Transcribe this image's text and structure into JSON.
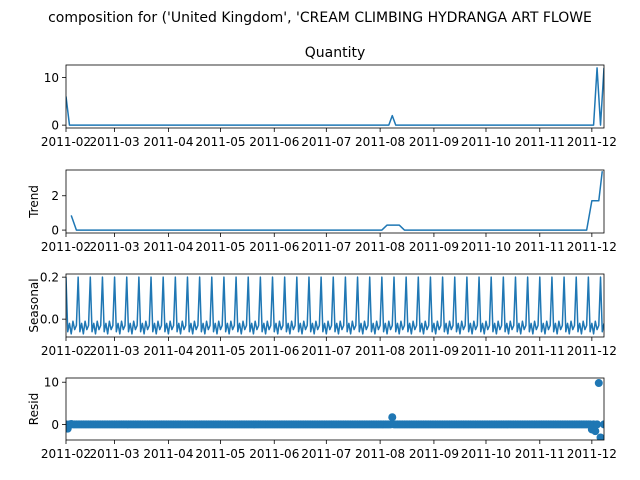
{
  "figure": {
    "suptitle": "composition for ('United Kingdom', 'CREAM CLIMBING HYDRANGA ART FLOWE"
  },
  "chart_data": [
    {
      "type": "line",
      "panel": "observed",
      "title": "Quantity",
      "ylabel": "",
      "color": "#1f77b4",
      "x_ticks": [
        "2011-02",
        "2011-03",
        "2011-04",
        "2011-05",
        "2011-06",
        "2011-07",
        "2011-08",
        "2011-09",
        "2011-10",
        "2011-11",
        "2011-12"
      ],
      "y_ticks": [
        0,
        10
      ],
      "ylim": [
        -0.6,
        12.6
      ],
      "series": [
        {
          "points": [
            [
              "2011-02-01",
              6
            ],
            [
              "2011-02-03",
              0
            ],
            [
              "2011-08-06",
              0
            ],
            [
              "2011-08-08",
              2
            ],
            [
              "2011-08-10",
              0
            ],
            [
              "2011-12-02",
              0
            ],
            [
              "2011-12-04",
              12
            ],
            [
              "2011-12-06",
              0
            ],
            [
              "2011-12-08",
              12
            ]
          ]
        }
      ]
    },
    {
      "type": "line",
      "panel": "trend",
      "title": "",
      "ylabel": "Trend",
      "color": "#1f77b4",
      "x_ticks": [
        "2011-02",
        "2011-03",
        "2011-04",
        "2011-05",
        "2011-06",
        "2011-07",
        "2011-08",
        "2011-09",
        "2011-10",
        "2011-11",
        "2011-12"
      ],
      "y_ticks": [
        0,
        2
      ],
      "ylim": [
        -0.17,
        3.5
      ],
      "series": [
        {
          "points": [
            [
              "2011-02-04",
              0.86
            ],
            [
              "2011-02-07",
              0
            ],
            [
              "2011-08-02",
              0
            ],
            [
              "2011-08-05",
              0.29
            ],
            [
              "2011-08-12",
              0.29
            ],
            [
              "2011-08-15",
              0
            ],
            [
              "2011-11-28",
              0
            ],
            [
              "2011-12-01",
              1.71
            ],
            [
              "2011-12-05",
              1.71
            ],
            [
              "2011-12-07",
              3.43
            ]
          ]
        }
      ]
    },
    {
      "type": "line",
      "panel": "seasonal",
      "title": "",
      "ylabel": "Seasonal",
      "color": "#1f77b4",
      "x_ticks": [
        "2011-02",
        "2011-03",
        "2011-04",
        "2011-05",
        "2011-06",
        "2011-07",
        "2011-08",
        "2011-09",
        "2011-10",
        "2011-11",
        "2011-12"
      ],
      "y_ticks": [
        0.0,
        0.2
      ],
      "ylim": [
        -0.085,
        0.215
      ],
      "period_days": 7,
      "series": [
        {
          "pattern": [
            0.2,
            -0.06,
            -0.02,
            -0.07,
            -0.01,
            -0.05,
            -0.03
          ]
        }
      ]
    },
    {
      "type": "scatter",
      "panel": "resid",
      "title": "",
      "ylabel": "Resid",
      "color": "#1f77b4",
      "x_ticks": [
        "2011-02",
        "2011-03",
        "2011-04",
        "2011-05",
        "2011-06",
        "2011-07",
        "2011-08",
        "2011-09",
        "2011-10",
        "2011-11",
        "2011-12"
      ],
      "y_ticks": [
        0,
        10
      ],
      "ylim": [
        -3.7,
        11
      ],
      "baseline": 0,
      "series": [
        {
          "points": [
            [
              "2011-02-02",
              -1.0
            ],
            [
              "2011-02-04",
              0.1
            ],
            [
              "2011-08-08",
              1.7
            ],
            [
              "2011-12-01",
              -1.2
            ],
            [
              "2011-12-03",
              -1.6
            ],
            [
              "2011-12-05",
              9.8
            ],
            [
              "2011-12-06",
              -3.1
            ],
            [
              "2011-12-07",
              -3.4
            ]
          ]
        }
      ]
    }
  ]
}
